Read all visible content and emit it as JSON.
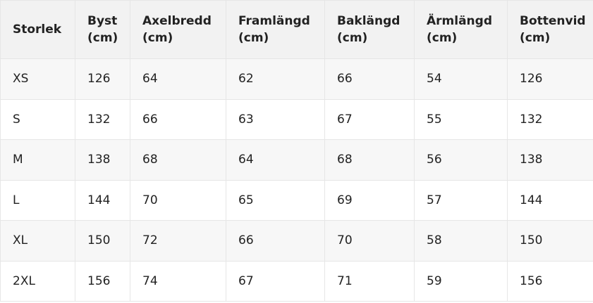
{
  "table": {
    "header": [
      "Storlek",
      "Byst\n(cm)",
      "Axelbredd\n(cm)",
      "Framlängd\n(cm)",
      "Baklängd\n(cm)",
      "Ärmlängd\n(cm)",
      "Bottenvid\n(cm)"
    ],
    "rows": [
      [
        "XS",
        126,
        64,
        62,
        66,
        54,
        126
      ],
      [
        "S",
        132,
        66,
        63,
        67,
        55,
        132
      ],
      [
        "M",
        138,
        68,
        64,
        68,
        56,
        138
      ],
      [
        "L",
        144,
        70,
        65,
        69,
        57,
        144
      ],
      [
        "XL",
        150,
        72,
        66,
        70,
        58,
        150
      ],
      [
        "2XL",
        156,
        74,
        67,
        71,
        59,
        156
      ]
    ]
  }
}
